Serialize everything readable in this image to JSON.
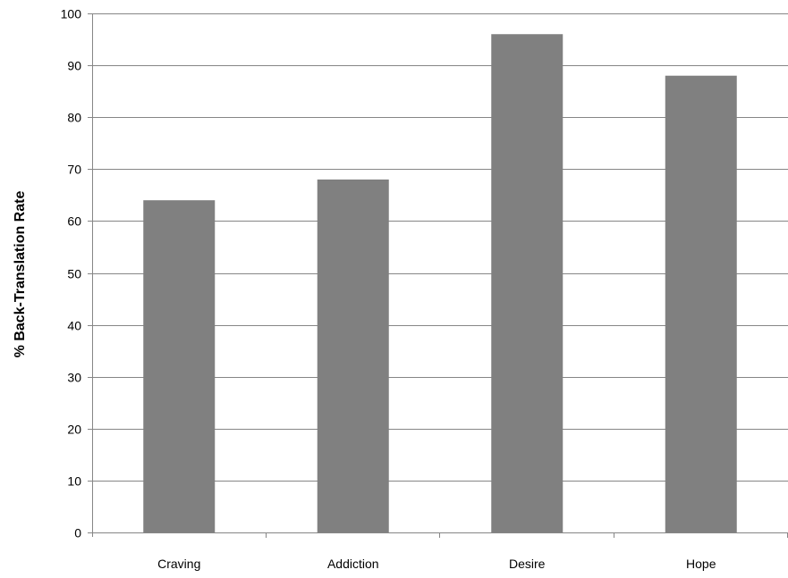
{
  "chart_data": {
    "type": "bar",
    "title": "",
    "xlabel": "",
    "ylabel": "% Back-Translation Rate",
    "categories": [
      "Craving",
      "Addiction",
      "Desire",
      "Hope"
    ],
    "values": [
      64,
      68,
      96,
      88
    ],
    "ylim": [
      0,
      100
    ],
    "yticks": [
      0,
      10,
      20,
      30,
      40,
      50,
      60,
      70,
      80,
      90,
      100
    ],
    "grid": true,
    "bar_color": "#808080",
    "gridline_color": "#868686"
  }
}
